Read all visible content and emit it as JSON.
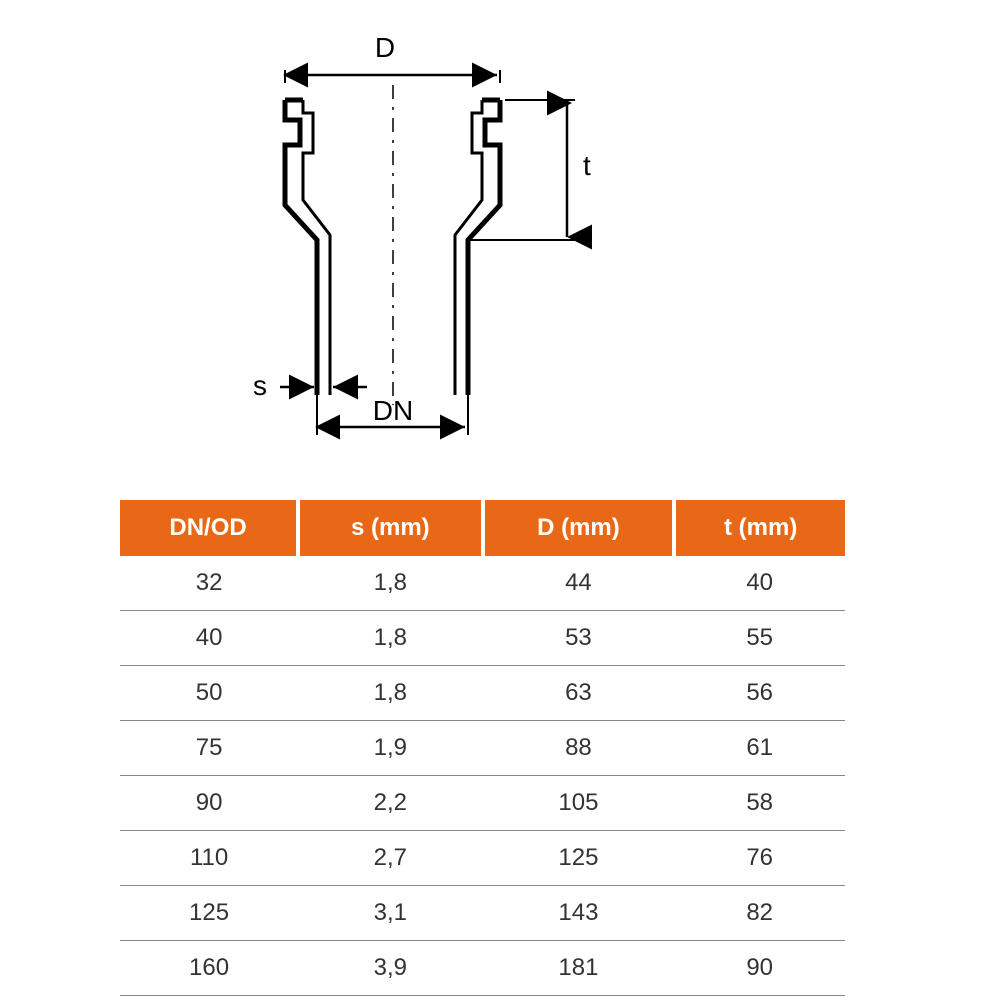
{
  "diagram": {
    "labels": {
      "D": "D",
      "t": "t",
      "s": "s",
      "DN": "DN"
    },
    "stroke_color": "#000000",
    "stroke_width": 3,
    "dash_pattern": "10,6",
    "arrow_size": 10
  },
  "table": {
    "header_bg": "#e86817",
    "header_fg": "#ffffff",
    "row_border": "#888888",
    "text_color": "#333333",
    "font_size": 24,
    "columns": [
      "DN/OD",
      "s (mm)",
      "D (mm)",
      "t (mm)"
    ],
    "rows": [
      [
        "32",
        "1,8",
        "44",
        "40"
      ],
      [
        "40",
        "1,8",
        "53",
        "55"
      ],
      [
        "50",
        "1,8",
        "63",
        "56"
      ],
      [
        "75",
        "1,9",
        "88",
        "61"
      ],
      [
        "90",
        "2,2",
        "105",
        "58"
      ],
      [
        "110",
        "2,7",
        "125",
        "76"
      ],
      [
        "125",
        "3,1",
        "143",
        "82"
      ],
      [
        "160",
        "3,9",
        "181",
        "90"
      ]
    ]
  }
}
